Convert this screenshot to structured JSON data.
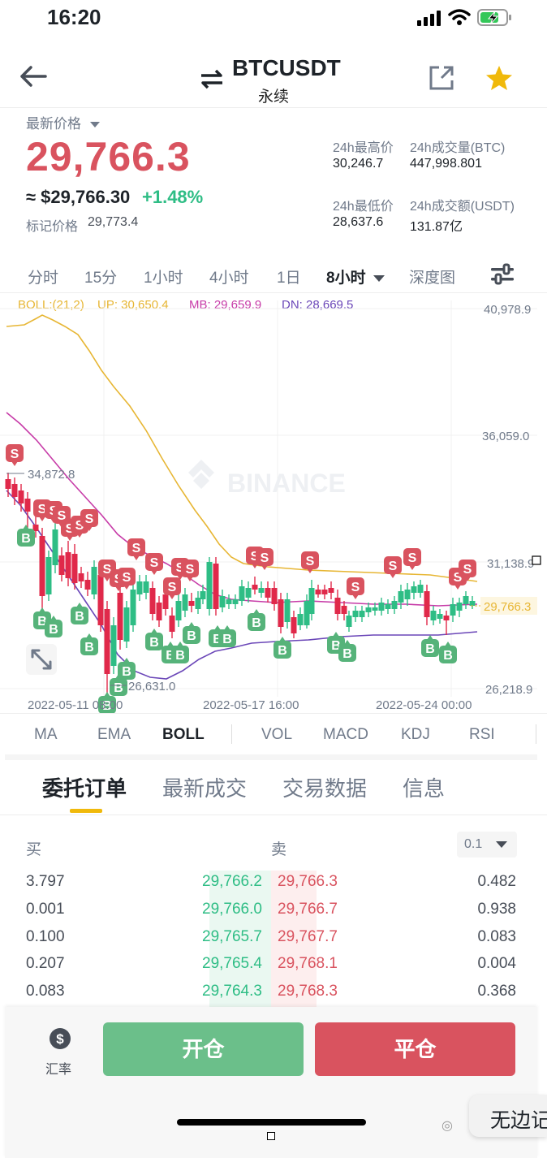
{
  "status": {
    "time": "16:20"
  },
  "header": {
    "symbol": "BTCUSDT",
    "subtitle": "永续"
  },
  "price": {
    "latest_label": "最新价格",
    "last": "29,766.3",
    "usd_approx": "≈ $29,766.30",
    "change": "+1.48%",
    "mark_label": "标记价格",
    "mark_value": "29,773.4"
  },
  "stats": {
    "high_label": "24h最高价",
    "high_value": "30,246.7",
    "vol_btc_label": "24h成交量(BTC)",
    "vol_btc_value": "447,998.801",
    "low_label": "24h最低价",
    "low_value": "28,637.6",
    "vol_usdt_label": "24h成交额(USDT)",
    "vol_usdt_value": "131.87亿"
  },
  "intervals": [
    {
      "label": "分时"
    },
    {
      "label": "15分"
    },
    {
      "label": "1小时"
    },
    {
      "label": "4小时"
    },
    {
      "label": "1日"
    },
    {
      "label": "8小时"
    },
    {
      "label": "深度图"
    }
  ],
  "boll": {
    "param": "BOLL:(21,2)",
    "up": "UP: 30,650.4",
    "mb": "MB: 29,659.9",
    "dn": "DN: 28,669.5"
  },
  "chart": {
    "y_ticks": [
      "40,978.9",
      "36,059.0",
      "31,138.9",
      "26,218.9"
    ],
    "current_price": "29,766.3",
    "max_label": "34,872.8",
    "min_label": "26,631.0",
    "x_labels": [
      "2022-05-11 08:00",
      "2022-05-17 16:00",
      "2022-05-24 00:00"
    ],
    "watermark": "BINANCE",
    "colors": {
      "up": "#2ebd85",
      "down": "#e0294a",
      "upper_band": "#e7b634",
      "mid_band": "#c73ca8",
      "lower_band": "#6b47b8"
    }
  },
  "indicators": [
    {
      "label": "MA"
    },
    {
      "label": "EMA"
    },
    {
      "label": "BOLL"
    },
    {
      "label": "VOL"
    },
    {
      "label": "MACD"
    },
    {
      "label": "KDJ"
    },
    {
      "label": "RSI"
    }
  ],
  "section_tabs": [
    {
      "label": "委托订单"
    },
    {
      "label": "最新成交"
    },
    {
      "label": "交易数据"
    },
    {
      "label": "信息"
    }
  ],
  "orderbook": {
    "buy_label": "买",
    "sell_label": "卖",
    "precision": "0.1",
    "rows": [
      {
        "bid_qty": "3.797",
        "bid_price": "29,766.2",
        "ask_price": "29,766.3",
        "ask_qty": "0.482"
      },
      {
        "bid_qty": "0.001",
        "bid_price": "29,766.0",
        "ask_price": "29,766.7",
        "ask_qty": "0.938"
      },
      {
        "bid_qty": "0.100",
        "bid_price": "29,765.7",
        "ask_price": "29,767.7",
        "ask_qty": "0.083"
      },
      {
        "bid_qty": "0.207",
        "bid_price": "29,765.4",
        "ask_price": "29,768.1",
        "ask_qty": "0.004"
      },
      {
        "bid_qty": "0.083",
        "bid_price": "29,764.3",
        "ask_price": "29,768.3",
        "ask_qty": "0.368"
      }
    ]
  },
  "bottom": {
    "rate_label": "汇率",
    "open_label": "开仓",
    "close_label": "平仓"
  },
  "toast": {
    "text": "无边记"
  }
}
